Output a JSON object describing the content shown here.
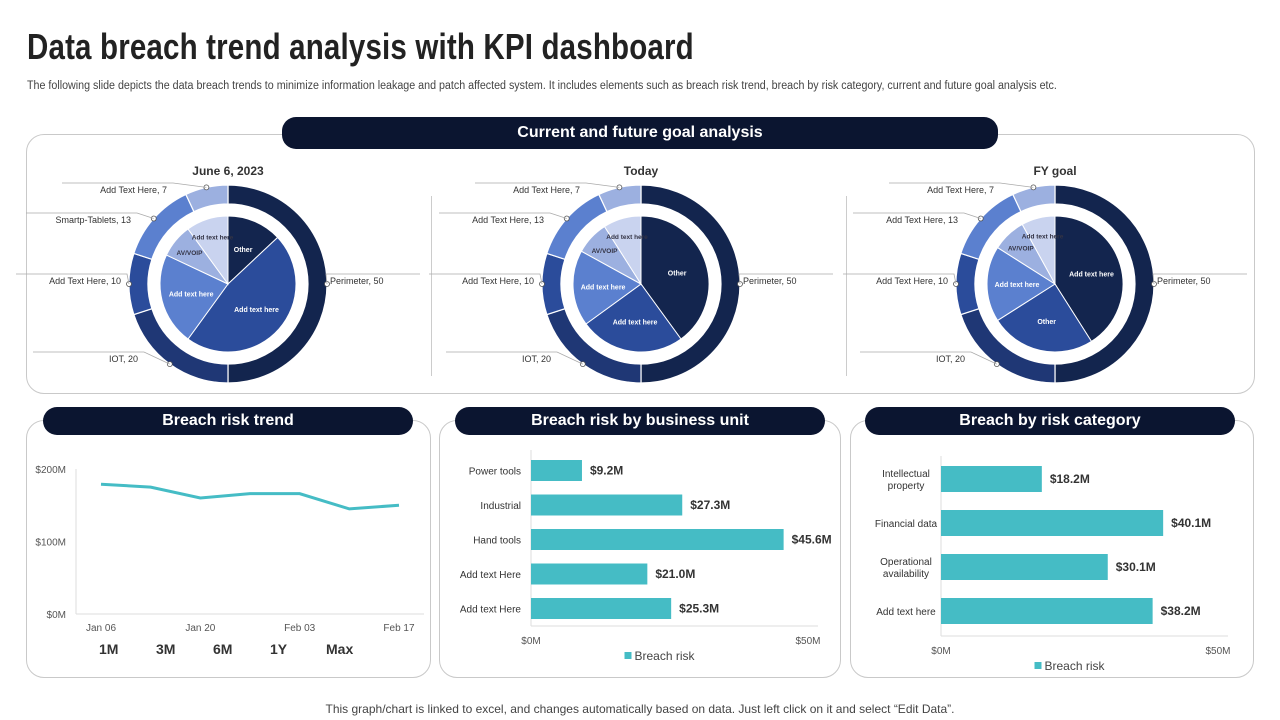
{
  "header": {
    "title": "Data breach trend analysis with KPI dashboard",
    "subtitle": "The following slide depicts the data breach trends to minimize information leakage and patch affected system. It includes elements such as breach risk trend, breach by risk category, current and future goal analysis etc."
  },
  "sections": {
    "goal": "Current and future goal analysis",
    "trend": "Breach risk trend",
    "unit": "Breach risk by business unit",
    "category": "Breach by risk category"
  },
  "range_buttons": [
    "1M",
    "3M",
    "6M",
    "1Y",
    "Max"
  ],
  "footer": "This graph/chart is linked to excel, and changes automatically based on data. Just left click on it and select “Edit Data”.",
  "colors": {
    "navy": "#13254e",
    "blue": "#2b4c9b",
    "mid": "#5b80cf",
    "light": "#9cb0e0",
    "pale": "#c9d3ef",
    "teal": "#45bcc5",
    "pill": "#0b1530"
  },
  "chart_data": [
    {
      "type": "pie",
      "title": "June 6, 2023",
      "outer": [
        {
          "label": "Perimeter",
          "value": 50
        },
        {
          "label": "IOT",
          "value": 20
        },
        {
          "label": "Add Text Here",
          "value": 10
        },
        {
          "label": "Smartp-Tablets",
          "value": 13
        },
        {
          "label": "Add Text Here",
          "value": 7
        }
      ],
      "inner": [
        {
          "label": "Other",
          "value": 13
        },
        {
          "label": "Add text here",
          "value": 47
        },
        {
          "label": "Add text here",
          "value": 22
        },
        {
          "label": "AV/VOIP",
          "value": 8
        },
        {
          "label": "Add text here",
          "value": 10
        }
      ]
    },
    {
      "type": "pie",
      "title": "Today",
      "outer": [
        {
          "label": "Perimeter",
          "value": 50
        },
        {
          "label": "IOT",
          "value": 20
        },
        {
          "label": "Add Text Here",
          "value": 10
        },
        {
          "label": "Add Text Here",
          "value": 13
        },
        {
          "label": "Add Text Here",
          "value": 7
        }
      ],
      "inner": [
        {
          "label": "Other",
          "value": 40
        },
        {
          "label": "Add text here",
          "value": 25
        },
        {
          "label": "Add text here",
          "value": 18
        },
        {
          "label": "AV/VOIP",
          "value": 8
        },
        {
          "label": "Add text here",
          "value": 9
        }
      ]
    },
    {
      "type": "pie",
      "title": "FY goal",
      "outer": [
        {
          "label": "Perimeter",
          "value": 50
        },
        {
          "label": "IOT",
          "value": 20
        },
        {
          "label": "Add Text Here",
          "value": 10
        },
        {
          "label": "Add Text Here",
          "value": 13
        },
        {
          "label": "Add Text Here",
          "value": 7
        }
      ],
      "inner": [
        {
          "label": "Add text here",
          "value": 41
        },
        {
          "label": "Other",
          "value": 25
        },
        {
          "label": "Add text here",
          "value": 18
        },
        {
          "label": "AV/VOIP",
          "value": 8
        },
        {
          "label": "Add text here",
          "value": 8
        }
      ]
    },
    {
      "type": "line",
      "x": [
        "Jan 06",
        "Jan 13",
        "Jan 20",
        "Jan 27",
        "Feb 03",
        "Feb 10",
        "Feb 17"
      ],
      "x_ticks": [
        "Jan 06",
        "Jan 20",
        "Feb 03",
        "Feb 17"
      ],
      "values": [
        179,
        175,
        160,
        166,
        166,
        145,
        150
      ],
      "ylim": [
        0,
        200
      ],
      "y_ticks": [
        "$0M",
        "$100M",
        "$200M"
      ],
      "grid": false
    },
    {
      "type": "bar",
      "orientation": "horizontal",
      "categories": [
        "Power tools",
        "Industrial",
        "Hand tools",
        "Add text Here",
        "Add text Here"
      ],
      "values": [
        9.2,
        27.3,
        45.6,
        21.0,
        25.3
      ],
      "labels": [
        "$9.2M",
        "$27.3M",
        "$45.6M",
        "$21.0M",
        "$25.3M"
      ],
      "xlim": [
        0,
        50
      ],
      "x_ticks": [
        "$0M",
        "$50M"
      ],
      "legend": "Breach risk",
      "legend_position": "bottom"
    },
    {
      "type": "bar",
      "orientation": "horizontal",
      "categories": [
        "Intellectual property",
        "Financial data",
        "Operational availability",
        "Add text here"
      ],
      "values": [
        18.2,
        40.1,
        30.1,
        38.2
      ],
      "labels": [
        "$18.2M",
        "$40.1M",
        "$30.1M",
        "$38.2M"
      ],
      "xlim": [
        0,
        50
      ],
      "x_ticks": [
        "$0M",
        "$50M"
      ],
      "legend": "Breach risk",
      "legend_position": "bottom"
    }
  ]
}
